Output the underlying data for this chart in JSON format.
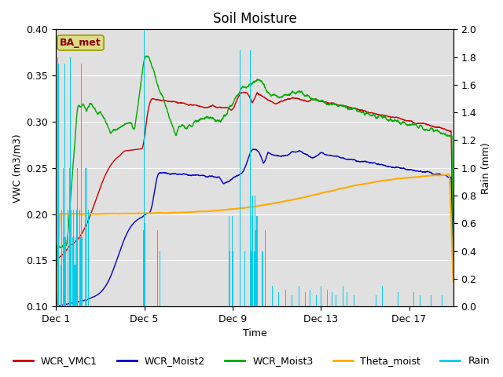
{
  "title": "Soil Moisture",
  "xlabel": "Time",
  "ylabel_left": "VWC (m3/m3)",
  "ylabel_right": "Rain (mm)",
  "ylim_left": [
    0.1,
    0.4
  ],
  "ylim_right": [
    0.0,
    2.0
  ],
  "yticks_left": [
    0.1,
    0.15,
    0.2,
    0.25,
    0.3,
    0.35,
    0.4
  ],
  "yticks_right": [
    0.0,
    0.2,
    0.4,
    0.6,
    0.8,
    1.0,
    1.2,
    1.4,
    1.6,
    1.8,
    2.0
  ],
  "xtick_labels": [
    "Dec 1",
    "Dec 5",
    "Dec 9",
    "Dec 13",
    "Dec 17"
  ],
  "xtick_positions": [
    0,
    4,
    8,
    12,
    16
  ],
  "xlim": [
    0,
    18
  ],
  "n_days": 18,
  "colors": {
    "WCR_VMC1": "#cc0000",
    "WCR_Moist2": "#0000cc",
    "WCR_Moist3": "#00aa00",
    "Theta_moist": "#ffaa00",
    "Rain": "#00ccee"
  },
  "background_color": "#e0e0e0",
  "title_fontsize": 12,
  "axis_label_fontsize": 9,
  "tick_fontsize": 9,
  "legend_fontsize": 9
}
